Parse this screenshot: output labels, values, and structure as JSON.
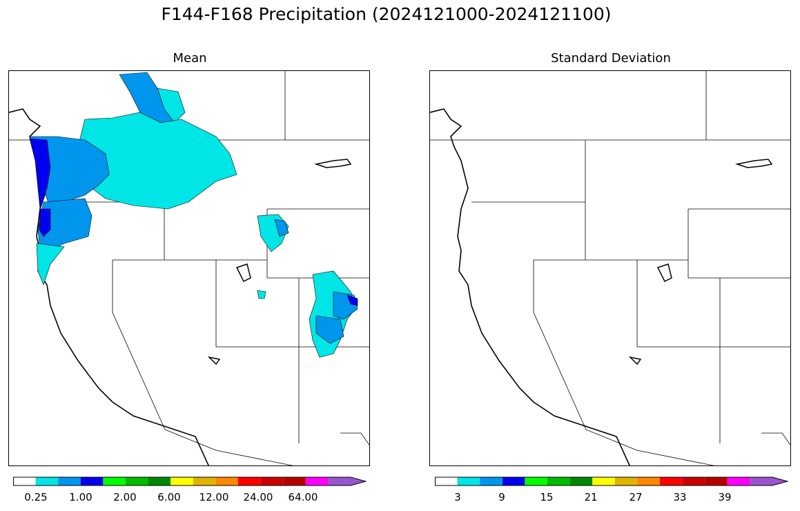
{
  "title": "F144-F168 Precipitation (2024121000-2024121100)",
  "panels": [
    {
      "id": "mean",
      "title": "Mean",
      "colorbar": {
        "colors": [
          "#ffffff",
          "#00e5e5",
          "#0096ee",
          "#0000ee",
          "#00ff00",
          "#00bb00",
          "#008800",
          "#ffff00",
          "#e0b400",
          "#ff8800",
          "#ff0000",
          "#cc0000",
          "#b80000",
          "#ff00ff",
          "#9955cc"
        ],
        "extend": "max",
        "tick_labels": [
          "0.25",
          "1.00",
          "2.00",
          "6.00",
          "12.00",
          "24.00",
          "64.00"
        ]
      }
    },
    {
      "id": "std",
      "title": "Standard Deviation",
      "colorbar": {
        "colors": [
          "#ffffff",
          "#00e5e5",
          "#0096ee",
          "#0000ee",
          "#00ff00",
          "#00bb00",
          "#008800",
          "#ffff00",
          "#e0b400",
          "#ff8800",
          "#ff0000",
          "#cc0000",
          "#b80000",
          "#ff00ff",
          "#9955cc"
        ],
        "extend": "max",
        "tick_labels": [
          "3",
          "9",
          "15",
          "21",
          "27",
          "33",
          "39"
        ]
      }
    }
  ]
}
